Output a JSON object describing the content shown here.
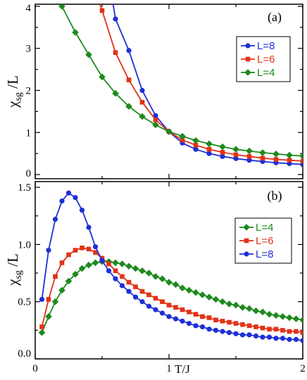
{
  "chart_data": [
    {
      "type": "line",
      "panel_label": "(a)",
      "xlabel": "",
      "ylabel": "χsg /L",
      "xlim": [
        0,
        2
      ],
      "ylim": [
        -0.1,
        4.05
      ],
      "x_ticks": [],
      "y_ticks": [
        "0",
        "1",
        "2",
        "3",
        "4"
      ],
      "legend_position": "top-right",
      "legend": [
        "L=8",
        "L=6",
        "L=4"
      ],
      "series": [
        {
          "name": "L=8",
          "color": "#1f2fd6",
          "marker": "circle",
          "points": [
            [
              0.57,
              4.3
            ],
            [
              0.6,
              3.7
            ],
            [
              0.7,
              2.95
            ],
            [
              0.8,
              2.0
            ],
            [
              0.9,
              1.4
            ],
            [
              1.0,
              1.02
            ],
            [
              1.1,
              0.75
            ],
            [
              1.2,
              0.6
            ],
            [
              1.3,
              0.5
            ],
            [
              1.4,
              0.43
            ],
            [
              1.5,
              0.38
            ],
            [
              1.6,
              0.34
            ],
            [
              1.7,
              0.31
            ],
            [
              1.8,
              0.28
            ],
            [
              1.9,
              0.26
            ],
            [
              2.0,
              0.24
            ]
          ]
        },
        {
          "name": "L=6",
          "color": "#e23216",
          "marker": "square",
          "points": [
            [
              0.4,
              4.8
            ],
            [
              0.5,
              3.9
            ],
            [
              0.6,
              2.9
            ],
            [
              0.7,
              2.25
            ],
            [
              0.8,
              1.72
            ],
            [
              0.9,
              1.3
            ],
            [
              1.0,
              1.02
            ],
            [
              1.1,
              0.82
            ],
            [
              1.2,
              0.7
            ],
            [
              1.3,
              0.6
            ],
            [
              1.4,
              0.53
            ],
            [
              1.5,
              0.47
            ],
            [
              1.6,
              0.43
            ],
            [
              1.7,
              0.39
            ],
            [
              1.8,
              0.36
            ],
            [
              1.9,
              0.34
            ],
            [
              2.0,
              0.32
            ]
          ]
        },
        {
          "name": "L=4",
          "color": "#1d8a1d",
          "marker": "diamond",
          "points": [
            [
              0.1,
              4.6
            ],
            [
              0.2,
              4.0
            ],
            [
              0.3,
              3.38
            ],
            [
              0.4,
              2.85
            ],
            [
              0.5,
              2.32
            ],
            [
              0.6,
              1.93
            ],
            [
              0.7,
              1.62
            ],
            [
              0.8,
              1.38
            ],
            [
              0.9,
              1.18
            ],
            [
              1.0,
              1.02
            ],
            [
              1.1,
              0.91
            ],
            [
              1.2,
              0.81
            ],
            [
              1.3,
              0.73
            ],
            [
              1.4,
              0.66
            ],
            [
              1.5,
              0.6
            ],
            [
              1.6,
              0.56
            ],
            [
              1.7,
              0.52
            ],
            [
              1.8,
              0.49
            ],
            [
              1.9,
              0.46
            ],
            [
              2.0,
              0.44
            ]
          ]
        }
      ]
    },
    {
      "type": "line",
      "panel_label": "(b)",
      "xlabel": "T/J",
      "ylabel": "χsg /L",
      "xlim": [
        0,
        2
      ],
      "ylim": [
        0,
        1.55
      ],
      "x_ticks": [
        "0",
        "1",
        "2"
      ],
      "y_ticks": [
        "0.0",
        "0.5",
        "1.0",
        "1.5"
      ],
      "legend_position": "right",
      "legend": [
        "L=4",
        "L=6",
        "L=8"
      ],
      "series": [
        {
          "name": "L=4",
          "color": "#1d8a1d",
          "marker": "diamond",
          "points": [
            [
              0.05,
              0.23
            ],
            [
              0.1,
              0.37
            ],
            [
              0.15,
              0.5
            ],
            [
              0.2,
              0.6
            ],
            [
              0.25,
              0.68
            ],
            [
              0.3,
              0.74
            ],
            [
              0.35,
              0.79
            ],
            [
              0.4,
              0.82
            ],
            [
              0.45,
              0.84
            ],
            [
              0.5,
              0.85
            ],
            [
              0.55,
              0.85
            ],
            [
              0.6,
              0.84
            ],
            [
              0.65,
              0.83
            ],
            [
              0.7,
              0.81
            ],
            [
              0.75,
              0.79
            ],
            [
              0.8,
              0.77
            ],
            [
              0.85,
              0.75
            ],
            [
              0.9,
              0.72
            ],
            [
              0.95,
              0.7
            ],
            [
              1.0,
              0.67
            ],
            [
              1.05,
              0.65
            ],
            [
              1.1,
              0.62
            ],
            [
              1.15,
              0.6
            ],
            [
              1.2,
              0.58
            ],
            [
              1.25,
              0.56
            ],
            [
              1.3,
              0.54
            ],
            [
              1.35,
              0.52
            ],
            [
              1.4,
              0.5
            ],
            [
              1.45,
              0.48
            ],
            [
              1.5,
              0.47
            ],
            [
              1.55,
              0.45
            ],
            [
              1.6,
              0.44
            ],
            [
              1.65,
              0.42
            ],
            [
              1.7,
              0.41
            ],
            [
              1.75,
              0.39
            ],
            [
              1.8,
              0.38
            ],
            [
              1.85,
              0.37
            ],
            [
              1.9,
              0.36
            ],
            [
              1.95,
              0.35
            ],
            [
              2.0,
              0.34
            ]
          ]
        },
        {
          "name": "L=6",
          "color": "#e23216",
          "marker": "square",
          "points": [
            [
              0.05,
              0.28
            ],
            [
              0.1,
              0.52
            ],
            [
              0.15,
              0.72
            ],
            [
              0.2,
              0.84
            ],
            [
              0.25,
              0.91
            ],
            [
              0.3,
              0.95
            ],
            [
              0.35,
              0.97
            ],
            [
              0.4,
              0.96
            ],
            [
              0.45,
              0.93
            ],
            [
              0.5,
              0.88
            ],
            [
              0.55,
              0.83
            ],
            [
              0.6,
              0.77
            ],
            [
              0.65,
              0.72
            ],
            [
              0.7,
              0.67
            ],
            [
              0.75,
              0.63
            ],
            [
              0.8,
              0.59
            ],
            [
              0.85,
              0.56
            ],
            [
              0.9,
              0.53
            ],
            [
              0.95,
              0.5
            ],
            [
              1.0,
              0.47
            ],
            [
              1.05,
              0.45
            ],
            [
              1.1,
              0.43
            ],
            [
              1.15,
              0.41
            ],
            [
              1.2,
              0.39
            ],
            [
              1.25,
              0.37
            ],
            [
              1.3,
              0.36
            ],
            [
              1.35,
              0.34
            ],
            [
              1.4,
              0.33
            ],
            [
              1.45,
              0.32
            ],
            [
              1.5,
              0.31
            ],
            [
              1.55,
              0.3
            ],
            [
              1.6,
              0.29
            ],
            [
              1.65,
              0.28
            ],
            [
              1.7,
              0.27
            ],
            [
              1.75,
              0.26
            ],
            [
              1.8,
              0.26
            ],
            [
              1.85,
              0.25
            ],
            [
              1.9,
              0.24
            ],
            [
              1.95,
              0.24
            ],
            [
              2.0,
              0.23
            ]
          ]
        },
        {
          "name": "L=8",
          "color": "#1f2fd6",
          "marker": "circle",
          "points": [
            [
              0.05,
              0.52
            ],
            [
              0.1,
              0.95
            ],
            [
              0.15,
              1.22
            ],
            [
              0.2,
              1.38
            ],
            [
              0.25,
              1.45
            ],
            [
              0.3,
              1.41
            ],
            [
              0.35,
              1.3
            ],
            [
              0.4,
              1.15
            ],
            [
              0.45,
              0.98
            ],
            [
              0.5,
              0.86
            ],
            [
              0.55,
              0.77
            ],
            [
              0.6,
              0.7
            ],
            [
              0.65,
              0.64
            ],
            [
              0.7,
              0.59
            ],
            [
              0.75,
              0.54
            ],
            [
              0.8,
              0.5
            ],
            [
              0.85,
              0.46
            ],
            [
              0.9,
              0.43
            ],
            [
              0.95,
              0.4
            ],
            [
              1.0,
              0.37
            ],
            [
              1.05,
              0.35
            ],
            [
              1.1,
              0.33
            ],
            [
              1.15,
              0.31
            ],
            [
              1.2,
              0.29
            ],
            [
              1.25,
              0.28
            ],
            [
              1.3,
              0.26
            ],
            [
              1.35,
              0.25
            ],
            [
              1.4,
              0.24
            ],
            [
              1.45,
              0.23
            ],
            [
              1.5,
              0.22
            ],
            [
              1.55,
              0.21
            ],
            [
              1.6,
              0.21
            ],
            [
              1.65,
              0.2
            ],
            [
              1.7,
              0.19
            ],
            [
              1.75,
              0.19
            ],
            [
              1.8,
              0.18
            ],
            [
              1.85,
              0.18
            ],
            [
              1.9,
              0.17
            ],
            [
              1.95,
              0.17
            ],
            [
              2.0,
              0.16
            ]
          ]
        }
      ]
    }
  ]
}
